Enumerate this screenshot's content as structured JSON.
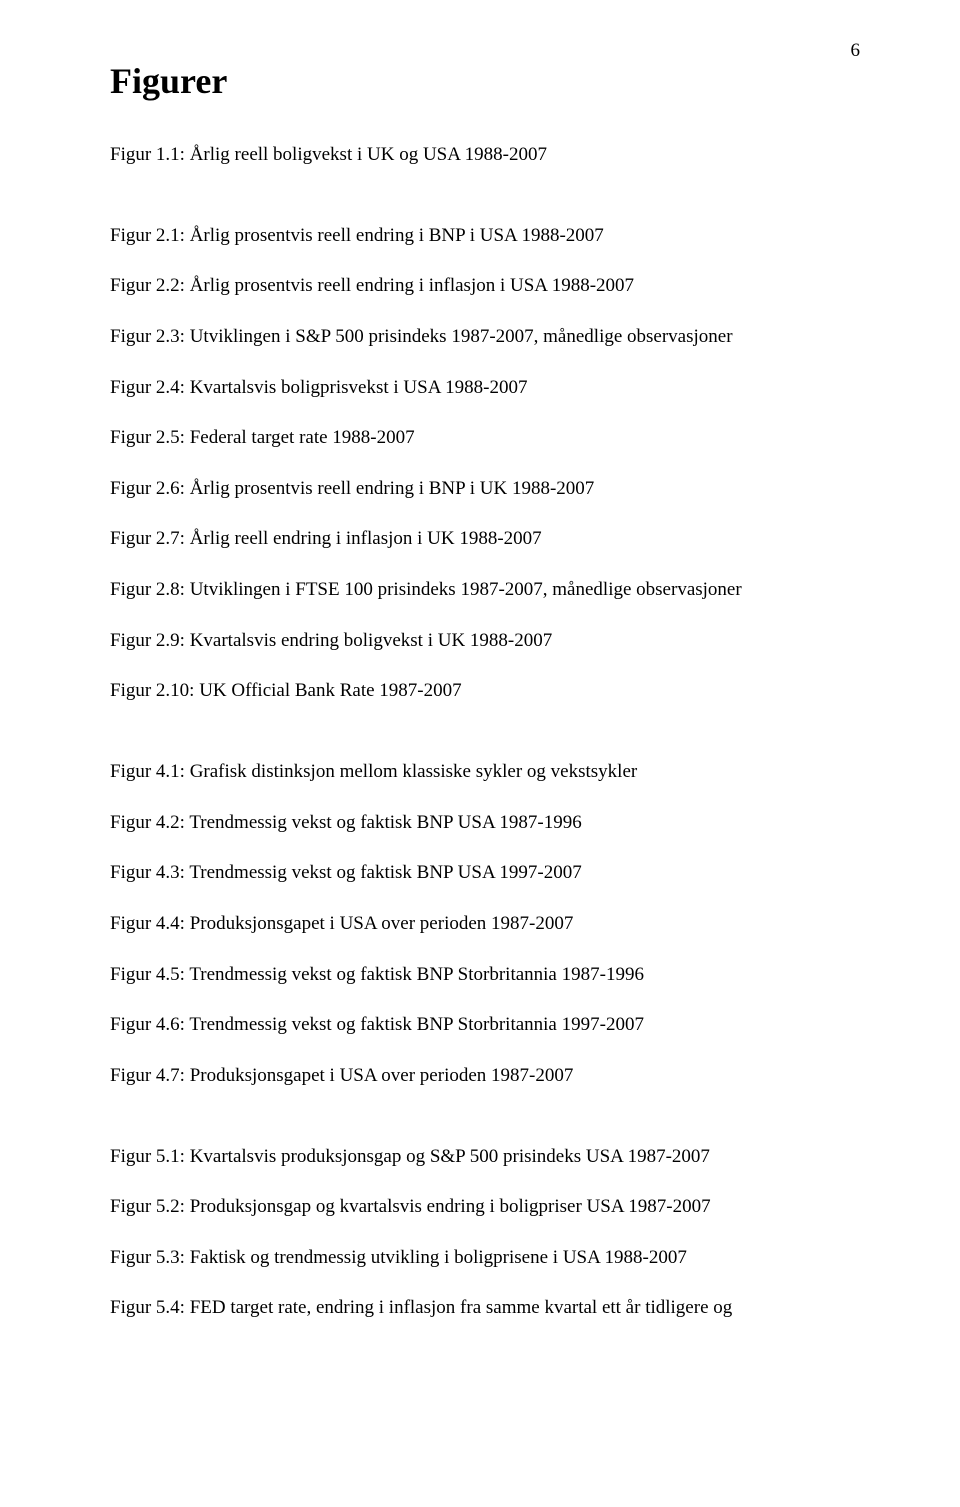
{
  "page_number": "6",
  "section_title": "Figurer",
  "groups": [
    [
      "Figur 1.1: Årlig reell boligvekst i UK og USA 1988-2007"
    ],
    [
      "Figur 2.1: Årlig prosentvis reell endring i BNP i USA 1988-2007",
      "Figur 2.2: Årlig prosentvis reell endring i inflasjon i USA 1988-2007",
      "Figur 2.3: Utviklingen i S&P  500 prisindeks 1987-2007, månedlige observasjoner",
      "Figur 2.4: Kvartalsvis boligprisvekst i USA 1988-2007",
      "Figur 2.5: Federal target rate 1988-2007",
      "Figur 2.6: Årlig prosentvis reell endring i BNP i UK 1988-2007",
      "Figur 2.7: Årlig reell endring i inflasjon i UK 1988-2007",
      "Figur 2.8: Utviklingen i FTSE 100 prisindeks 1987-2007, månedlige observasjoner",
      "Figur 2.9: Kvartalsvis endring boligvekst i UK 1988-2007",
      "Figur 2.10: UK Official Bank Rate 1987-2007"
    ],
    [
      "Figur 4.1: Grafisk distinksjon mellom klassiske sykler og vekstsykler",
      "Figur 4.2: Trendmessig vekst og faktisk BNP USA 1987-1996",
      "Figur 4.3: Trendmessig vekst og faktisk BNP USA 1997-2007",
      "Figur 4.4: Produksjonsgapet i USA over perioden 1987-2007",
      "Figur 4.5: Trendmessig vekst og faktisk BNP Storbritannia 1987-1996",
      "Figur 4.6: Trendmessig vekst og faktisk BNP Storbritannia 1997-2007",
      "Figur 4.7: Produksjonsgapet i USA over perioden 1987-2007"
    ],
    [
      "Figur 5.1: Kvartalsvis produksjonsgap og S&P 500 prisindeks USA 1987-2007",
      "Figur 5.2: Produksjonsgap og kvartalsvis endring i boligpriser USA 1987-2007",
      "Figur 5.3: Faktisk og trendmessig utvikling i boligprisene i USA 1988-2007",
      "Figur 5.4: FED target rate, endring i inflasjon fra samme kvartal ett år tidligere og"
    ]
  ]
}
